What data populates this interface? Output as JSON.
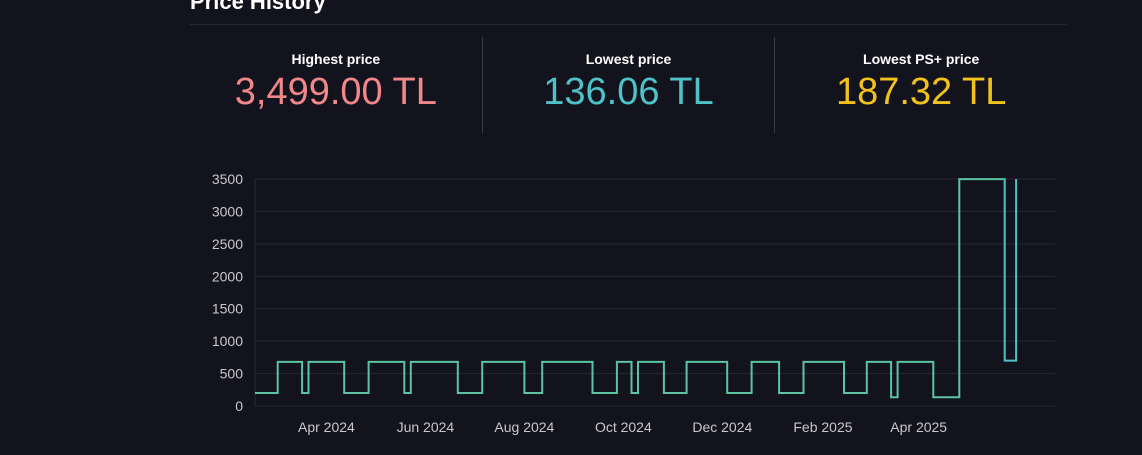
{
  "section": {
    "title": "Price History"
  },
  "stats": [
    {
      "label": "Highest price",
      "value": "3,499.00 TL",
      "color": "#f0878a"
    },
    {
      "label": "Lowest price",
      "value": "136.06 TL",
      "color": "#4ec2c6"
    },
    {
      "label": "Lowest PS+ price",
      "value": "187.32 TL",
      "color": "#f1c21b"
    }
  ],
  "colors": {
    "background": "#13131d",
    "grid": "#2a2a36",
    "axis_text": "#c8c8c8",
    "line": "#5cc4a0",
    "line_recent": "#4ec2c6"
  },
  "chart_data": {
    "type": "line",
    "step": true,
    "title": "",
    "xlabel": "",
    "ylabel": "",
    "ylim": [
      0,
      3500
    ],
    "yticks": [
      0,
      500,
      1000,
      1500,
      2000,
      2500,
      3000,
      3500
    ],
    "xlim": [
      "2024-02-17",
      "2025-06-24"
    ],
    "xticks": [
      {
        "date": "2024-04-01",
        "label": "Apr 2024"
      },
      {
        "date": "2024-06-01",
        "label": "Jun 2024"
      },
      {
        "date": "2024-08-01",
        "label": "Aug 2024"
      },
      {
        "date": "2024-10-01",
        "label": "Oct 2024"
      },
      {
        "date": "2024-12-01",
        "label": "Dec 2024"
      },
      {
        "date": "2025-02-01",
        "label": "Feb 2025"
      },
      {
        "date": "2025-04-01",
        "label": "Apr 2025"
      }
    ],
    "grid": true,
    "legend": "none",
    "series": [
      {
        "points": [
          [
            "2024-02-17",
            200
          ],
          [
            "2024-03-02",
            680
          ],
          [
            "2024-03-17",
            200
          ],
          [
            "2024-03-21",
            680
          ],
          [
            "2024-04-12",
            200
          ],
          [
            "2024-04-27",
            680
          ],
          [
            "2024-05-19",
            200
          ],
          [
            "2024-05-23",
            680
          ],
          [
            "2024-06-21",
            200
          ],
          [
            "2024-07-06",
            680
          ],
          [
            "2024-08-01",
            200
          ],
          [
            "2024-08-12",
            680
          ],
          [
            "2024-09-12",
            200
          ],
          [
            "2024-09-27",
            680
          ],
          [
            "2024-10-06",
            200
          ],
          [
            "2024-10-10",
            680
          ],
          [
            "2024-10-26",
            200
          ],
          [
            "2024-11-09",
            680
          ],
          [
            "2024-12-04",
            200
          ],
          [
            "2024-12-19",
            680
          ],
          [
            "2025-01-05",
            200
          ],
          [
            "2025-01-20",
            680
          ],
          [
            "2025-02-14",
            200
          ],
          [
            "2025-02-28",
            680
          ],
          [
            "2025-03-15",
            136
          ],
          [
            "2025-03-19",
            680
          ],
          [
            "2025-04-10",
            136
          ],
          [
            "2025-04-26",
            3499
          ],
          [
            "2025-05-23",
            3499
          ]
        ]
      },
      {
        "points": [
          [
            "2025-05-23",
            3499
          ],
          [
            "2025-05-24",
            700
          ],
          [
            "2025-05-31",
            700
          ],
          [
            "2025-05-31",
            3499
          ]
        ]
      }
    ]
  }
}
